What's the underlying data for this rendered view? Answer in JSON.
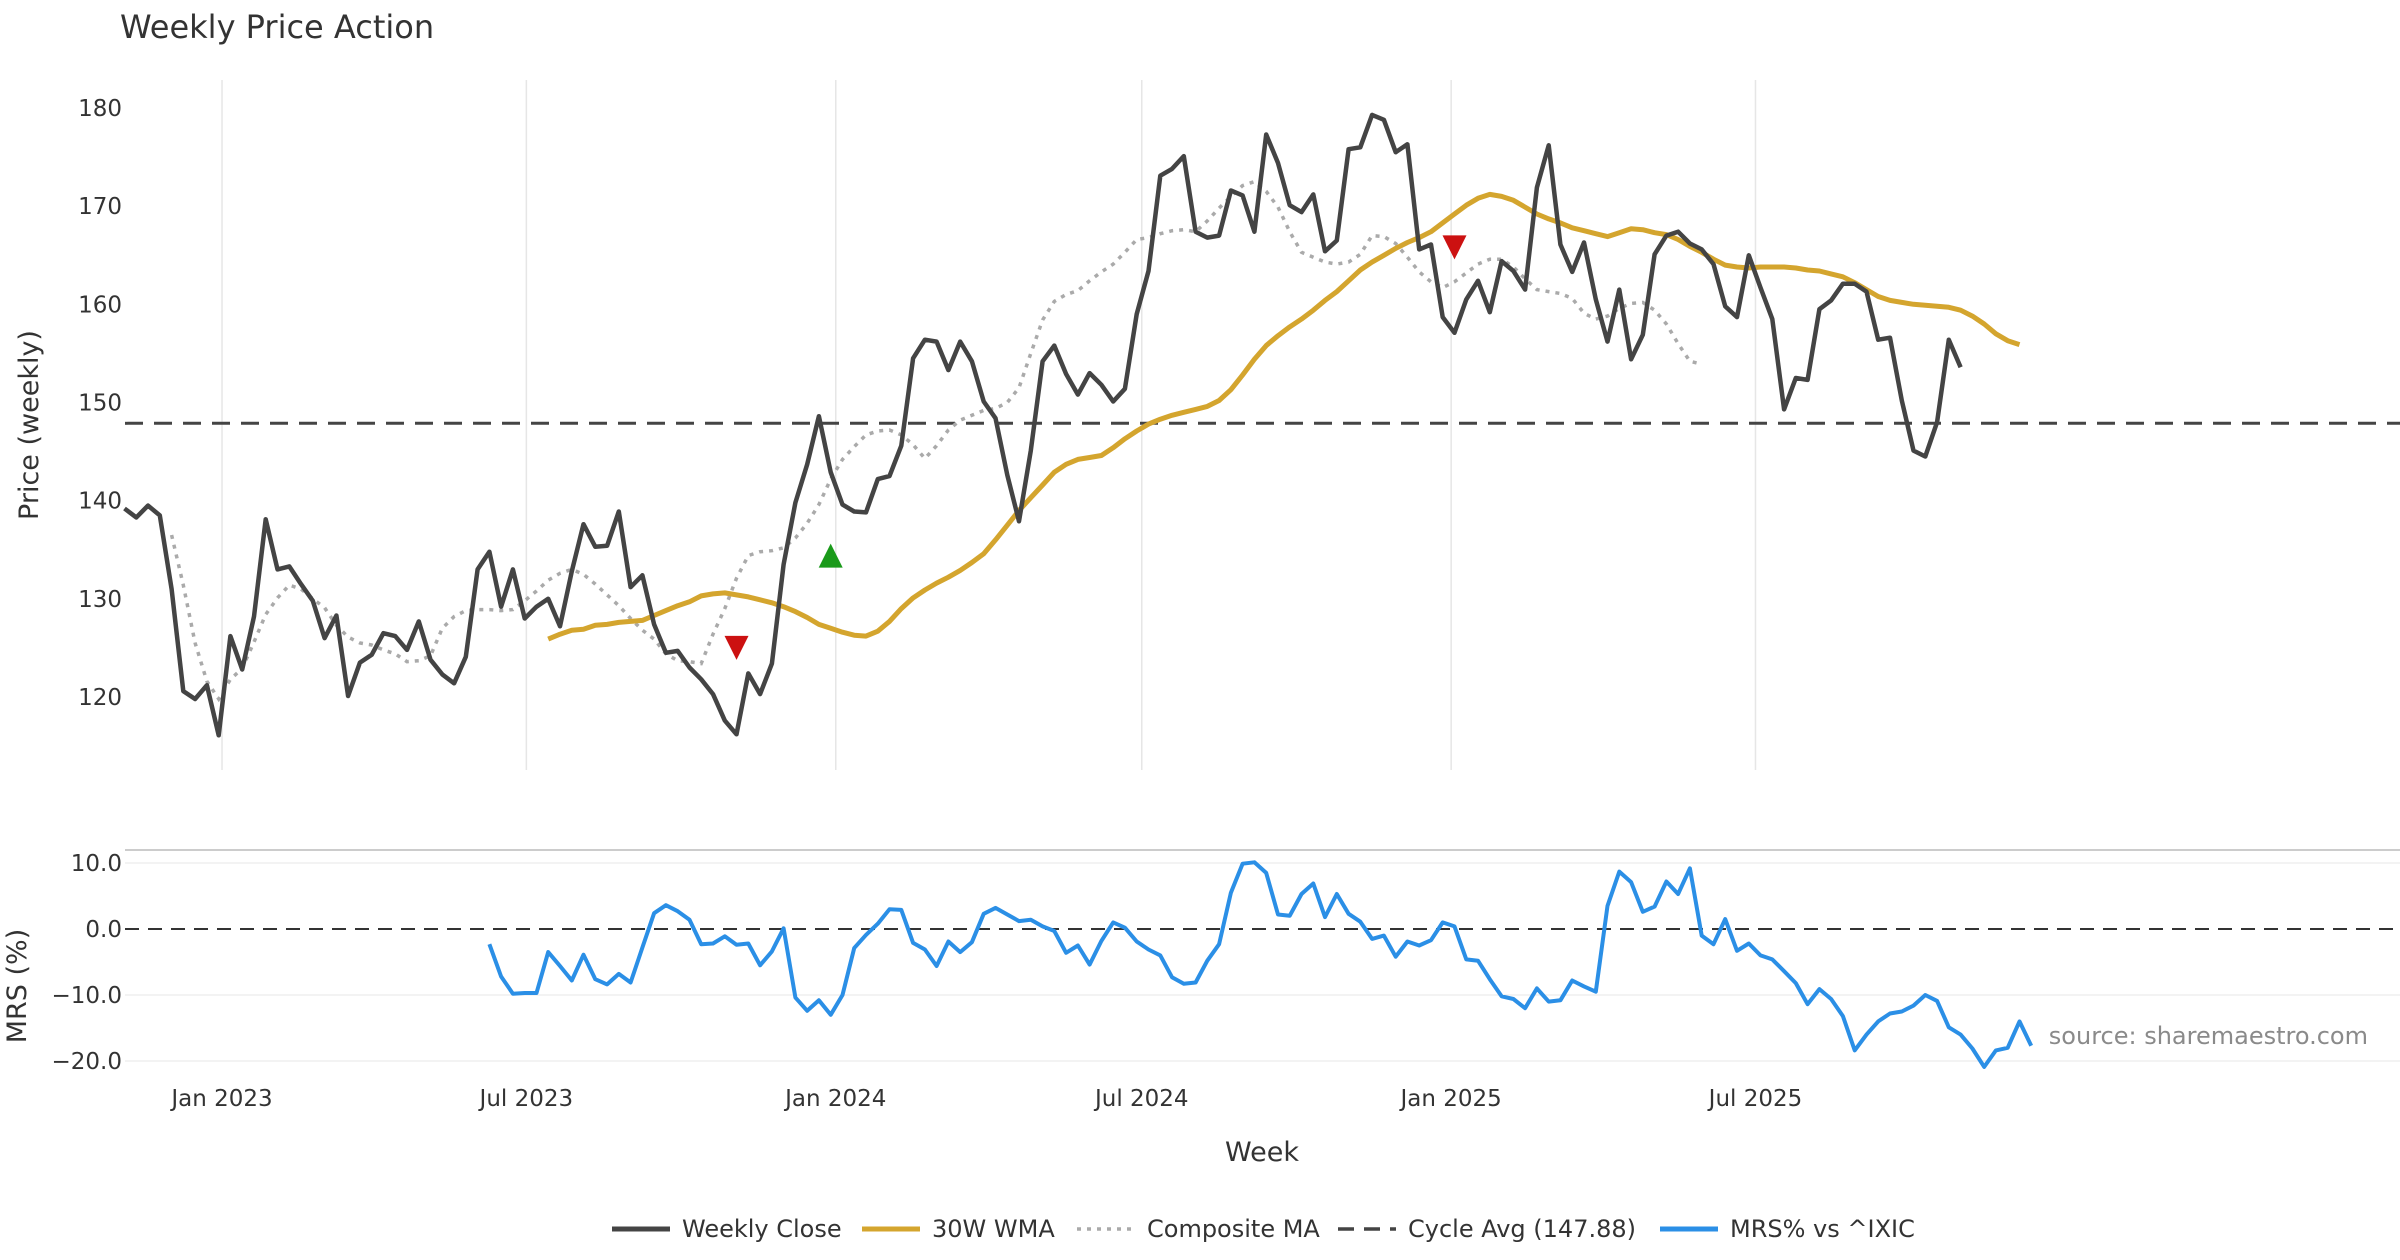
{
  "chart_data": [
    {
      "type": "line",
      "title": "Weekly Price Action",
      "ylabel": "Price (weekly)",
      "ylim": [
        112,
        183
      ],
      "yticks": [
        120,
        130,
        140,
        150,
        160,
        170,
        180
      ],
      "grid": "vertical",
      "colors": {
        "close": "#444444",
        "wma": "#d4a52e",
        "composite": "#aaaaaa",
        "cycle": "#444444",
        "sell": "#cc1111",
        "buy": "#1a9a1a"
      },
      "x_start": "2022-11-04",
      "week_spacing_days": 7,
      "series": [
        {
          "name": "Weekly Close",
          "values": [
            139.2,
            138.3,
            139.5,
            138.5,
            131,
            120.6,
            119.8,
            121.2,
            116.1,
            126.2,
            122.8,
            128.2,
            138.1,
            133,
            133.3,
            131.5,
            129.8,
            126,
            128.3,
            120.1,
            123.5,
            124.3,
            126.5,
            126.2,
            124.8,
            127.7,
            123.8,
            122.3,
            121.4,
            124.1,
            133,
            134.8,
            129.2,
            133,
            128,
            129.2,
            130,
            127.2,
            132.8,
            137.6,
            135.3,
            135.4,
            138.9,
            131.2,
            132.4,
            127.4,
            124.5,
            124.7,
            123,
            121.8,
            120.3,
            117.6,
            116.2,
            122.4,
            120.3,
            123.4,
            133.5,
            139.8,
            143.7,
            148.6,
            142.9,
            139.6,
            138.9,
            138.8,
            142.2,
            142.5,
            145.6,
            154.5,
            156.4,
            156.2,
            153.3,
            156.2,
            154.2,
            150.1,
            148.4,
            142.6,
            137.9,
            145.1,
            154.2,
            155.8,
            152.9,
            150.8,
            153,
            151.8,
            150.1,
            151.4,
            159,
            163.4,
            173.1,
            173.8,
            175.1,
            167.4,
            166.8,
            167,
            171.6,
            171.1,
            167.4,
            177.3,
            174.4,
            170.1,
            169.4,
            171.2,
            165.4,
            166.5,
            175.8,
            176,
            179.3,
            178.8,
            175.5,
            176.3,
            165.6,
            166.1,
            158.7,
            157.1,
            160.5,
            162.4,
            159.2,
            164.4,
            163.4,
            161.5,
            171.9,
            176.2,
            166.1,
            163.3,
            166.3,
            160.5,
            156.2,
            161.5,
            154.4,
            156.9,
            165.1,
            167,
            167.4,
            166.2,
            165.6,
            164.1,
            159.8,
            158.7,
            165,
            161.7,
            158.5,
            149.3,
            152.5,
            152.3,
            159.5,
            160.4,
            162.1,
            162.1,
            161.3,
            156.4,
            156.6,
            150.2,
            145.1,
            144.5,
            148,
            156.4,
            153.6
          ]
        },
        {
          "name": "30W WMA",
          "start_week": 36,
          "values": [
            125.9,
            126.4,
            126.8,
            126.9,
            127.3,
            127.4,
            127.6,
            127.7,
            127.8,
            128.3,
            128.8,
            129.3,
            129.7,
            130.3,
            130.5,
            130.6,
            130.4,
            130.2,
            129.9,
            129.6,
            129.2,
            128.7,
            128.1,
            127.4,
            127.0,
            126.6,
            126.3,
            126.2,
            126.7,
            127.7,
            129.0,
            130.1,
            130.9,
            131.6,
            132.2,
            132.9,
            133.7,
            134.6,
            136.0,
            137.5,
            139.0,
            140.3,
            141.6,
            142.9,
            143.7,
            144.2,
            144.4,
            144.6,
            145.4,
            146.3,
            147.1,
            147.8,
            148.3,
            148.7,
            149.0,
            149.3,
            149.6,
            150.2,
            151.3,
            152.8,
            154.4,
            155.8,
            156.8,
            157.7,
            158.5,
            159.4,
            160.4,
            161.3,
            162.4,
            163.5,
            164.3,
            165.0,
            165.7,
            166.3,
            166.8,
            167.4,
            168.3,
            169.2,
            170.1,
            170.8,
            171.2,
            171.0,
            170.6,
            169.9,
            169.2,
            168.7,
            168.3,
            167.8,
            167.5,
            167.2,
            166.9,
            167.3,
            167.7,
            167.6,
            167.3,
            167.1,
            166.6,
            165.9,
            165.3,
            164.6,
            164.0,
            163.8,
            163.7,
            163.8,
            163.8,
            163.8,
            163.7,
            163.5,
            163.4,
            163.1,
            162.8,
            162.2,
            161.5,
            160.8,
            160.4,
            160.2,
            160.0,
            159.9,
            159.8,
            159.7,
            159.4,
            158.8,
            158.0,
            157.0,
            156.3,
            155.9
          ]
        },
        {
          "name": "Composite MA",
          "start_week": 4,
          "values": [
            136.5,
            131.4,
            125.5,
            121.6,
            119.8,
            121.8,
            122.9,
            125.6,
            128.4,
            130.1,
            131.4,
            131.0,
            130.0,
            129.1,
            127.3,
            126.1,
            125.5,
            125.3,
            124.8,
            124.4,
            123.6,
            123.7,
            124.2,
            127.0,
            128.2,
            128.8,
            128.9,
            128.9,
            128.8,
            128.9,
            129.8,
            130.8,
            131.9,
            132.6,
            133.0,
            132.5,
            131.5,
            130.4,
            129.3,
            128.0,
            126.8,
            125.9,
            124.4,
            123.7,
            123.6,
            123.4,
            126.4,
            129.0,
            132.1,
            134.4,
            134.8,
            134.9,
            135.2,
            136.2,
            137.7,
            139.6,
            142.2,
            144.2,
            145.5,
            146.7,
            147.1,
            147.2,
            146.7,
            145.7,
            144.3,
            145.6,
            147.2,
            148.2,
            148.7,
            149.2,
            149.4,
            150.0,
            151.5,
            155.0,
            158.4,
            160.3,
            161.0,
            161.4,
            162.4,
            163.3,
            164.1,
            165.3,
            166.6,
            166.8,
            167.2,
            167.5,
            167.6,
            167.4,
            168.5,
            169.8,
            171.0,
            172.1,
            172.5,
            171.5,
            169.9,
            167.4,
            165.3,
            164.8,
            164.3,
            164.1,
            164.3,
            165.1,
            167.0,
            166.9,
            166.2,
            164.8,
            163.3,
            162.3,
            161.7,
            162.3,
            163.2,
            164.1,
            164.6,
            164.6,
            163.8,
            162.6,
            161.5,
            161.3,
            161.1,
            160.6,
            159.1,
            158.5,
            158.8,
            159.6,
            160.1,
            160.2,
            159.4,
            158.0,
            156.0,
            154.2,
            153.9
          ]
        },
        {
          "name": "Cycle Avg (147.88)",
          "constant": 147.88
        }
      ],
      "markers": [
        {
          "type": "sell",
          "x": "2023-11-03",
          "y": 125.0
        },
        {
          "type": "buy",
          "x": "2023-12-29",
          "y": 134.4
        },
        {
          "type": "sell",
          "x": "2025-01-03",
          "y": 165.8
        }
      ]
    },
    {
      "type": "line",
      "ylabel": "MRS (%)",
      "xlabel": "Week",
      "ylim": [
        -22.8,
        12.4
      ],
      "yticks": [
        10,
        0,
        -10,
        -20
      ],
      "ytick_labels": [
        "10.0",
        "0.0",
        "−10.0",
        "−20.0"
      ],
      "zero_line": true,
      "colors": {
        "mrs": "#2b8fe6"
      },
      "series": [
        {
          "name": "MRS% vs ^IXIC",
          "start_week": 31,
          "values": [
            -2.3,
            -7.2,
            -9.8,
            -9.7,
            -9.7,
            -3.5,
            -5.6,
            -7.8,
            -3.9,
            -7.6,
            -8.4,
            -6.8,
            -8.1,
            -2.8,
            2.4,
            3.6,
            2.7,
            1.4,
            -2.3,
            -2.2,
            -1.1,
            -2.4,
            -2.2,
            -5.5,
            -3.4,
            0.1,
            -10.4,
            -12.4,
            -10.8,
            -13.0,
            -10.0,
            -2.9,
            -0.9,
            0.8,
            3.0,
            2.9,
            -2.1,
            -3.1,
            -5.6,
            -1.9,
            -3.5,
            -2.0,
            2.3,
            3.2,
            2.2,
            1.2,
            1.4,
            0.4,
            -0.3,
            -3.6,
            -2.5,
            -5.4,
            -1.8,
            1.0,
            0.2,
            -1.9,
            -3.1,
            -4.0,
            -7.3,
            -8.3,
            -8.1,
            -4.8,
            -2.3,
            5.5,
            9.9,
            10.1,
            8.5,
            2.2,
            2.0,
            5.3,
            6.9,
            1.8,
            5.3,
            2.3,
            1.1,
            -1.5,
            -1.0,
            -4.2,
            -1.9,
            -2.5,
            -1.7,
            1.0,
            0.4,
            -4.6,
            -4.8,
            -7.6,
            -10.2,
            -10.6,
            -12.0,
            -9.0,
            -11.0,
            -10.8,
            -7.8,
            -8.7,
            -9.5,
            3.5,
            8.7,
            7.1,
            2.6,
            3.4,
            7.2,
            5.3,
            9.2,
            -1.0,
            -2.3,
            1.5,
            -3.3,
            -2.2,
            -4.0,
            -4.6,
            -6.4,
            -8.2,
            -11.4,
            -9.1,
            -10.6,
            -13.2,
            -18.4,
            -16.0,
            -14.0,
            -12.8,
            -12.5,
            -11.6,
            -10.0,
            -10.9,
            -14.9,
            -16.0,
            -18.1,
            -20.9,
            -18.4,
            -18.0,
            -14.0,
            -17.7
          ]
        }
      ],
      "xticks": [
        {
          "label": "Jan 2023",
          "date": "2023-01-01"
        },
        {
          "label": "Jul 2023",
          "date": "2023-07-01"
        },
        {
          "label": "Jan 2024",
          "date": "2024-01-01"
        },
        {
          "label": "Jul 2024",
          "date": "2024-07-01"
        },
        {
          "label": "Jan 2025",
          "date": "2025-01-01"
        },
        {
          "label": "Jul 2025",
          "date": "2025-07-01"
        }
      ]
    }
  ],
  "legend": {
    "placement": "bottom-center",
    "items": [
      {
        "label": "Weekly Close",
        "style": "solid",
        "color": "#444444"
      },
      {
        "label": "30W WMA",
        "style": "solid",
        "color": "#d4a52e"
      },
      {
        "label": "Composite MA",
        "style": "dotted",
        "color": "#aaaaaa"
      },
      {
        "label": "Cycle Avg (147.88)",
        "style": "dashed",
        "color": "#444444"
      },
      {
        "label": "MRS% vs ^IXIC",
        "style": "solid",
        "color": "#2b8fe6"
      }
    ]
  },
  "source_text": "source: sharemaestro.com"
}
